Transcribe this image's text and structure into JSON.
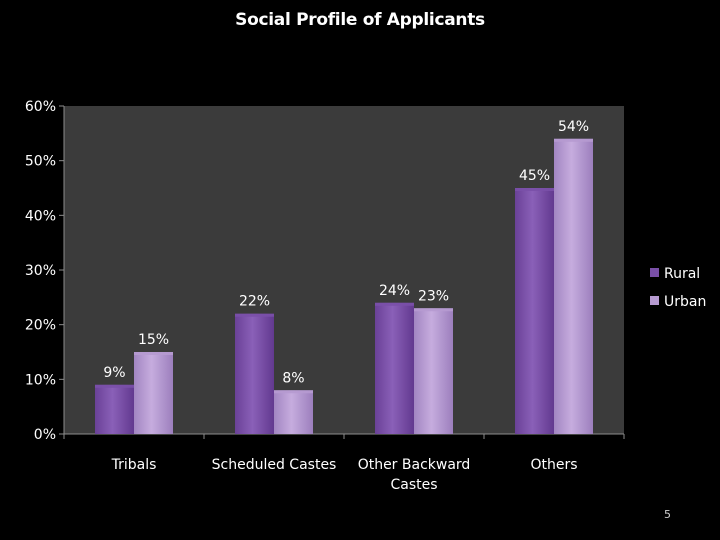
{
  "slide": {
    "title": "Social Profile of Applicants",
    "page_number": "5"
  },
  "colors": {
    "plot_background": "#3b3b3b",
    "rural": "#7a50a8",
    "urban": "#b69ad0",
    "text": "#ffffff",
    "axis": "#8c8c8c"
  },
  "chart_data": {
    "type": "bar",
    "title": "Social Profile of Applicants",
    "categories": [
      "Tribals",
      "Scheduled Castes",
      "Other Backward Castes",
      "Others"
    ],
    "category_lines": [
      [
        "Tribals"
      ],
      [
        "Scheduled Castes"
      ],
      [
        "Other Backward",
        "Castes"
      ],
      [
        "Others"
      ]
    ],
    "series": [
      {
        "name": "Rural",
        "values": [
          9,
          22,
          24,
          45
        ],
        "labels": [
          "9%",
          "22%",
          "24%",
          "45%"
        ]
      },
      {
        "name": "Urban",
        "values": [
          15,
          8,
          23,
          54
        ],
        "labels": [
          "15%",
          "8%",
          "23%",
          "54%"
        ]
      }
    ],
    "y_ticks": [
      "0%",
      "10%",
      "20%",
      "30%",
      "40%",
      "50%",
      "60%"
    ],
    "ylim": [
      0,
      60
    ],
    "y_unit": "%",
    "grid": false,
    "legend": "right"
  }
}
